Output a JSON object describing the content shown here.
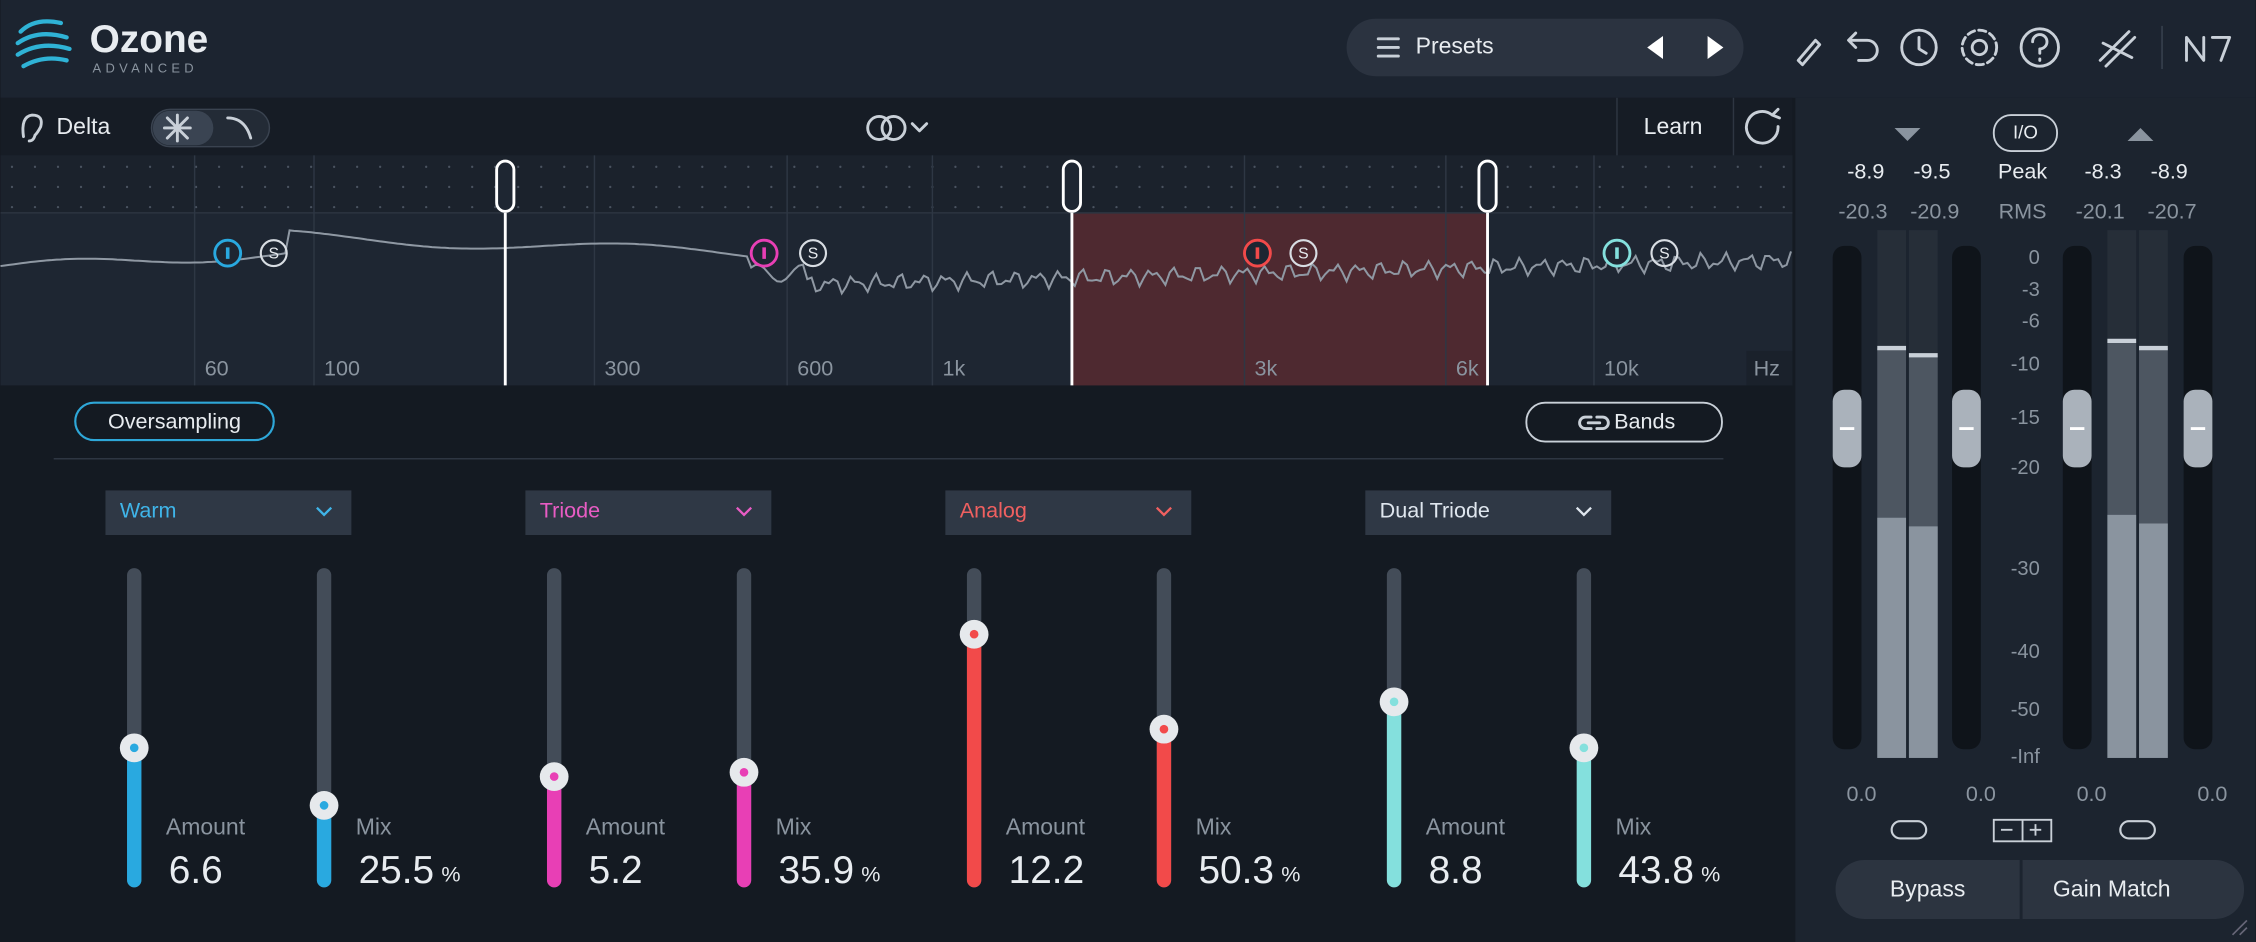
{
  "header": {
    "logo": "Ozone",
    "edition": "ADVANCED",
    "presets": "Presets"
  },
  "toolbar": {
    "delta": "Delta",
    "learn": "Learn"
  },
  "spectrum": {
    "frequency_labels": [
      "60",
      "100",
      "300",
      "600",
      "1k",
      "3k",
      "6k",
      "10k"
    ],
    "unit": "Hz",
    "solo": "S"
  },
  "options": {
    "oversampling": "Oversampling",
    "bands": "Bands"
  },
  "bands": [
    {
      "mode": "Warm",
      "amount_label": "Amount",
      "amount": 6.6,
      "mix_label": "Mix",
      "mix": 25.5,
      "mix_unit": "%"
    },
    {
      "mode": "Triode",
      "amount_label": "Amount",
      "amount": 5.2,
      "mix_label": "Mix",
      "mix": 35.9,
      "mix_unit": "%"
    },
    {
      "mode": "Analog",
      "amount_label": "Amount",
      "amount": 12.2,
      "mix_label": "Mix",
      "mix": 50.3,
      "mix_unit": "%"
    },
    {
      "mode": "Dual Triode",
      "amount_label": "Amount",
      "amount": 8.8,
      "mix_label": "Mix",
      "mix": 43.8,
      "mix_unit": "%"
    }
  ],
  "meters": {
    "io": "I/O",
    "peak_label": "Peak",
    "rms_label": "RMS",
    "peak": [
      -8.9,
      -9.5,
      -8.3,
      -8.9
    ],
    "rms": [
      -20.3,
      -20.9,
      -20.1,
      -20.7
    ],
    "scale": [
      0,
      -3,
      -6,
      -10,
      -15,
      -20,
      -30,
      -40,
      -50,
      "-Inf"
    ],
    "gain": [
      "0.0",
      "0.0",
      "0.0",
      "0.0"
    ],
    "bypass": "Bypass",
    "gain_match": "Gain Match"
  }
}
